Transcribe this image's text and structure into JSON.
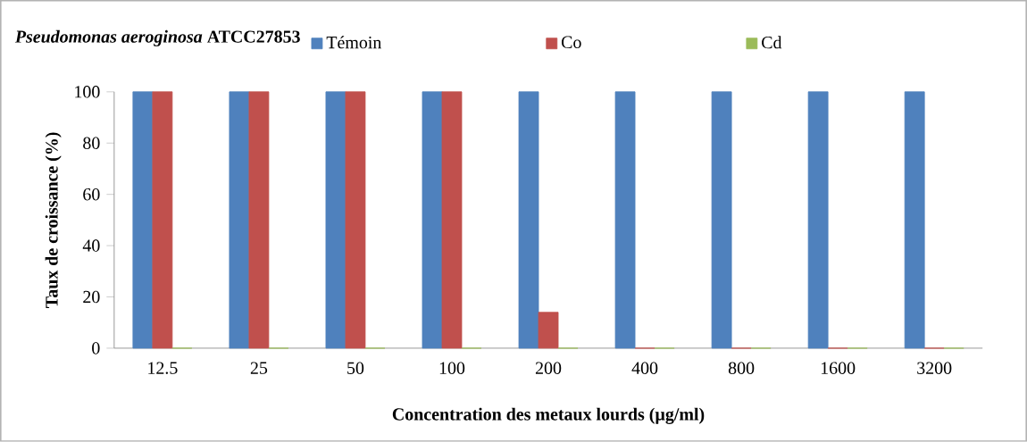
{
  "chart_data": {
    "type": "bar",
    "title": "*Pseudomonas aeroginosa* ATCC27853",
    "xlabel": "Concentration des metaux lourds (µg/ml)",
    "ylabel": "Taux de croissance (%)",
    "categories": [
      "12.5",
      "25",
      "50",
      "100",
      "200",
      "400",
      "800",
      "1600",
      "3200"
    ],
    "series": [
      {
        "name": "Témoin",
        "color": "#4f81bd",
        "values": [
          100,
          100,
          100,
          100,
          100,
          100,
          100,
          100,
          100
        ]
      },
      {
        "name": "Co",
        "color": "#c0504d",
        "values": [
          100,
          100,
          100,
          100,
          14,
          0,
          0,
          0,
          0
        ]
      },
      {
        "name": "Cd",
        "color": "#9bbb59",
        "values": [
          0,
          0,
          0,
          0,
          0,
          0,
          0,
          0,
          0
        ]
      }
    ],
    "ylim": [
      0,
      100
    ],
    "yticks": [
      0,
      20,
      40,
      60,
      80,
      100
    ],
    "legend": "top",
    "grid": false
  }
}
